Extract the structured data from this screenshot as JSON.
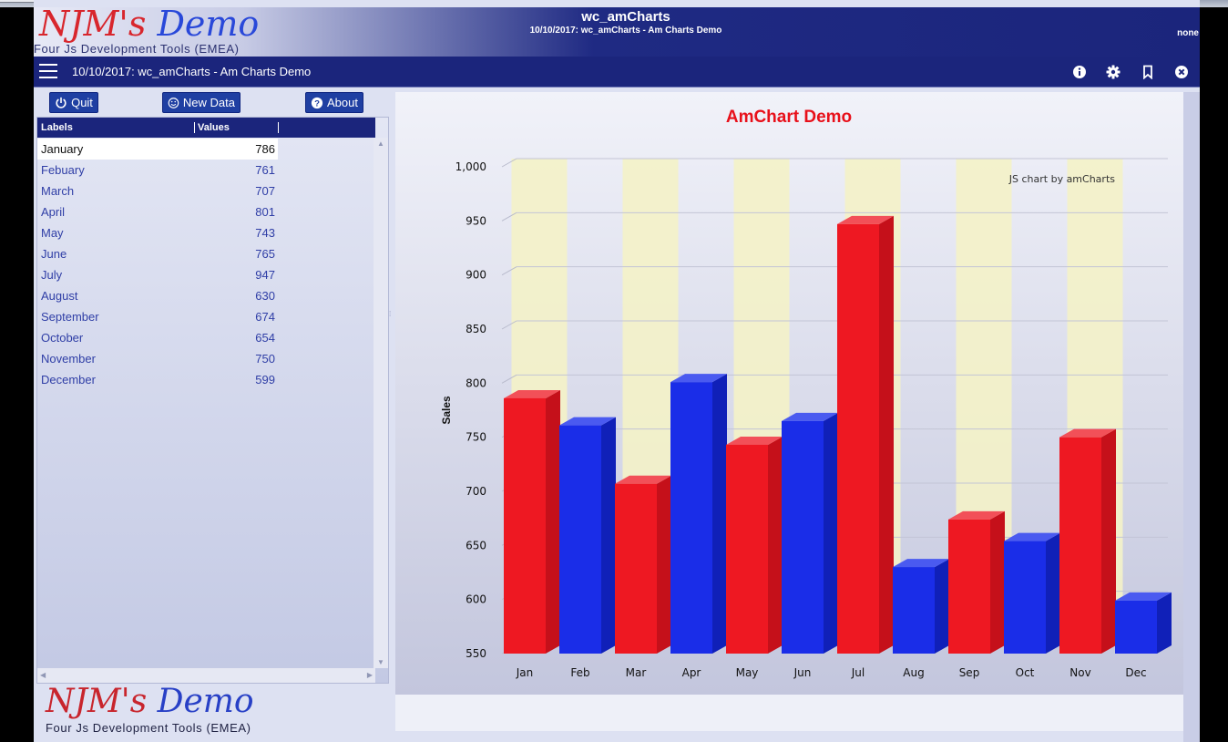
{
  "header": {
    "logo_part1": "NJM's",
    "logo_part2": "Demo",
    "logo_subtitle": "Four Js Development Tools (EMEA)",
    "app_title": "wc_amCharts",
    "app_subtitle": "10/10/2017: wc_amCharts - Am Charts Demo",
    "user": "none"
  },
  "toolbar": {
    "title": "10/10/2017: wc_amCharts - Am Charts Demo",
    "icons": [
      "menu-icon",
      "info-icon",
      "gear-icon",
      "bookmark-icon",
      "close-icon"
    ]
  },
  "buttons": {
    "quit": "Quit",
    "new_data": "New Data",
    "about": "About"
  },
  "table": {
    "columns": [
      "Labels",
      "Values"
    ],
    "rows": [
      {
        "label": "January",
        "value": "786"
      },
      {
        "label": "Febuary",
        "value": "761"
      },
      {
        "label": "March",
        "value": "707"
      },
      {
        "label": "April",
        "value": "801"
      },
      {
        "label": "May",
        "value": "743"
      },
      {
        "label": "June",
        "value": "765"
      },
      {
        "label": "July",
        "value": "947"
      },
      {
        "label": "August",
        "value": "630"
      },
      {
        "label": "September",
        "value": "674"
      },
      {
        "label": "October",
        "value": "654"
      },
      {
        "label": "November",
        "value": "750"
      },
      {
        "label": "December",
        "value": "599"
      }
    ]
  },
  "footer_logo": {
    "part1": "NJM's",
    "part2": "Demo",
    "subtitle": "Four Js Development Tools (EMEA)"
  },
  "colors": {
    "red_bar": "#ee1822",
    "blue_bar": "#1a2de8",
    "band": "#f4f2c8",
    "title": "#e8101a",
    "header_blue": "#1b257c"
  },
  "chart_data": {
    "type": "bar",
    "title": "AmChart Demo",
    "credit": "JS chart by amCharts",
    "ylabel": "Sales",
    "xlabel": "",
    "categories": [
      "Jan",
      "Feb",
      "Mar",
      "Apr",
      "May",
      "Jun",
      "Jul",
      "Aug",
      "Sep",
      "Oct",
      "Nov",
      "Dec"
    ],
    "values": [
      786,
      761,
      707,
      801,
      743,
      765,
      947,
      630,
      674,
      654,
      750,
      599
    ],
    "bar_colors": [
      "red",
      "blue",
      "red",
      "blue",
      "red",
      "blue",
      "red",
      "blue",
      "red",
      "blue",
      "red",
      "blue"
    ],
    "ylim": [
      550,
      1000
    ],
    "yticks": [
      550,
      600,
      650,
      700,
      750,
      800,
      850,
      900,
      950,
      1000
    ],
    "ytick_labels": [
      "550",
      "600",
      "650",
      "700",
      "750",
      "800",
      "850",
      "900",
      "950",
      "1,000"
    ],
    "grid": true,
    "style": "3d-column"
  }
}
